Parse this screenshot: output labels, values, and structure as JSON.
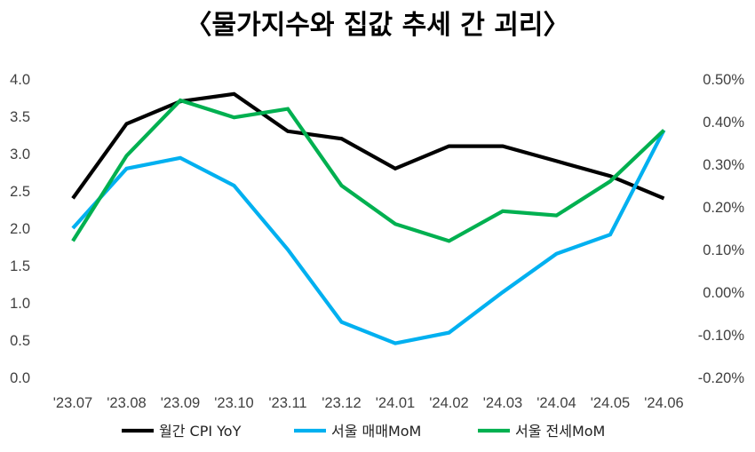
{
  "chart_data": {
    "type": "line",
    "title": "〈물가지수와 집값 추세 간 괴리〉",
    "categories": [
      "'23.07",
      "'23.08",
      "'23.09",
      "'23.10",
      "'23.11",
      "'23.12",
      "'24.01",
      "'24.02",
      "'24.03",
      "'24.04",
      "'24.05",
      "'24.06"
    ],
    "left_axis": {
      "ylim": [
        0,
        4.0
      ],
      "ticks": [
        "0.0",
        "0.5",
        "1.0",
        "1.5",
        "2.0",
        "2.5",
        "3.0",
        "3.5",
        "4.0"
      ]
    },
    "right_axis": {
      "ylim": [
        -0.2,
        0.5
      ],
      "ticks": [
        "-0.20%",
        "-0.10%",
        "0.00%",
        "0.10%",
        "0.20%",
        "0.30%",
        "0.40%",
        "0.50%"
      ]
    },
    "series": [
      {
        "name": "월간 CPI YoY",
        "axis": "left",
        "color": "#000000",
        "values": [
          2.4,
          3.4,
          3.7,
          3.8,
          3.3,
          3.2,
          2.8,
          3.1,
          3.1,
          2.9,
          2.7,
          2.4
        ]
      },
      {
        "name": "서울 매매MoM",
        "axis": "right",
        "color": "#00b0f0",
        "values": [
          0.15,
          0.29,
          0.315,
          0.25,
          0.1,
          -0.07,
          -0.12,
          -0.095,
          0.0,
          0.09,
          0.135,
          0.38
        ]
      },
      {
        "name": "서울 전세MoM",
        "axis": "right",
        "color": "#00b050",
        "values": [
          0.12,
          0.32,
          0.45,
          0.41,
          0.43,
          0.25,
          0.16,
          0.12,
          0.19,
          0.18,
          0.26,
          0.38
        ]
      }
    ],
    "grid": false,
    "legend_position": "bottom"
  }
}
